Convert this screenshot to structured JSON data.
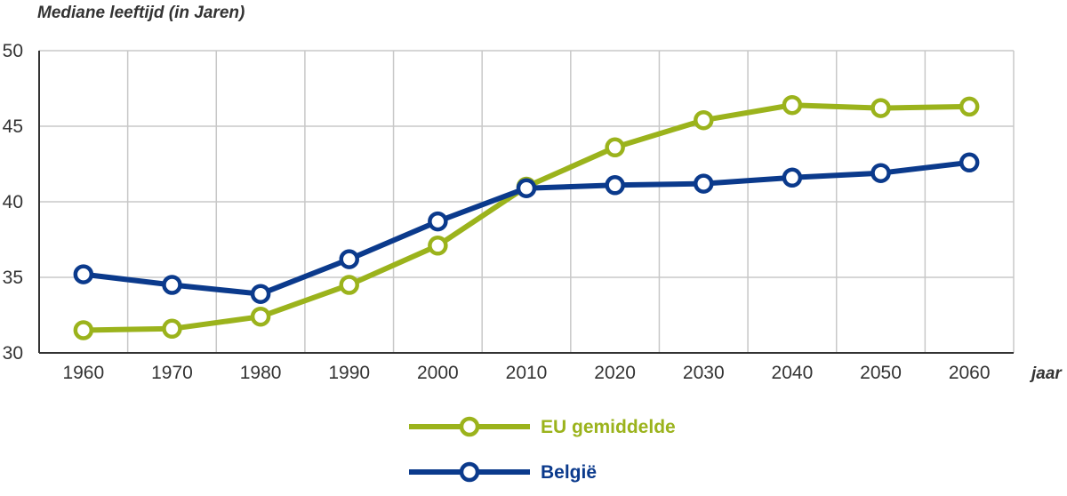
{
  "chart_data": {
    "type": "line",
    "ylabel": "Mediane leeftijd (in Jaren)",
    "xlabel": "jaar",
    "categories": [
      "1960",
      "1970",
      "1980",
      "1990",
      "2000",
      "2010",
      "2020",
      "2030",
      "2040",
      "2050",
      "2060"
    ],
    "ylim": [
      30,
      50
    ],
    "yticks": [
      30,
      35,
      40,
      45,
      50
    ],
    "grid": true,
    "legend_position": "bottom-center",
    "series": [
      {
        "name": "EU gemiddelde",
        "color": "#9bb31c",
        "values": [
          31.5,
          31.6,
          32.4,
          34.5,
          37.1,
          41.0,
          43.6,
          45.4,
          46.4,
          46.2,
          46.3
        ]
      },
      {
        "name": "België",
        "color": "#0b3a8c",
        "values": [
          35.2,
          34.5,
          33.9,
          36.2,
          38.7,
          40.9,
          41.1,
          41.2,
          41.6,
          41.9,
          42.6
        ]
      }
    ]
  }
}
